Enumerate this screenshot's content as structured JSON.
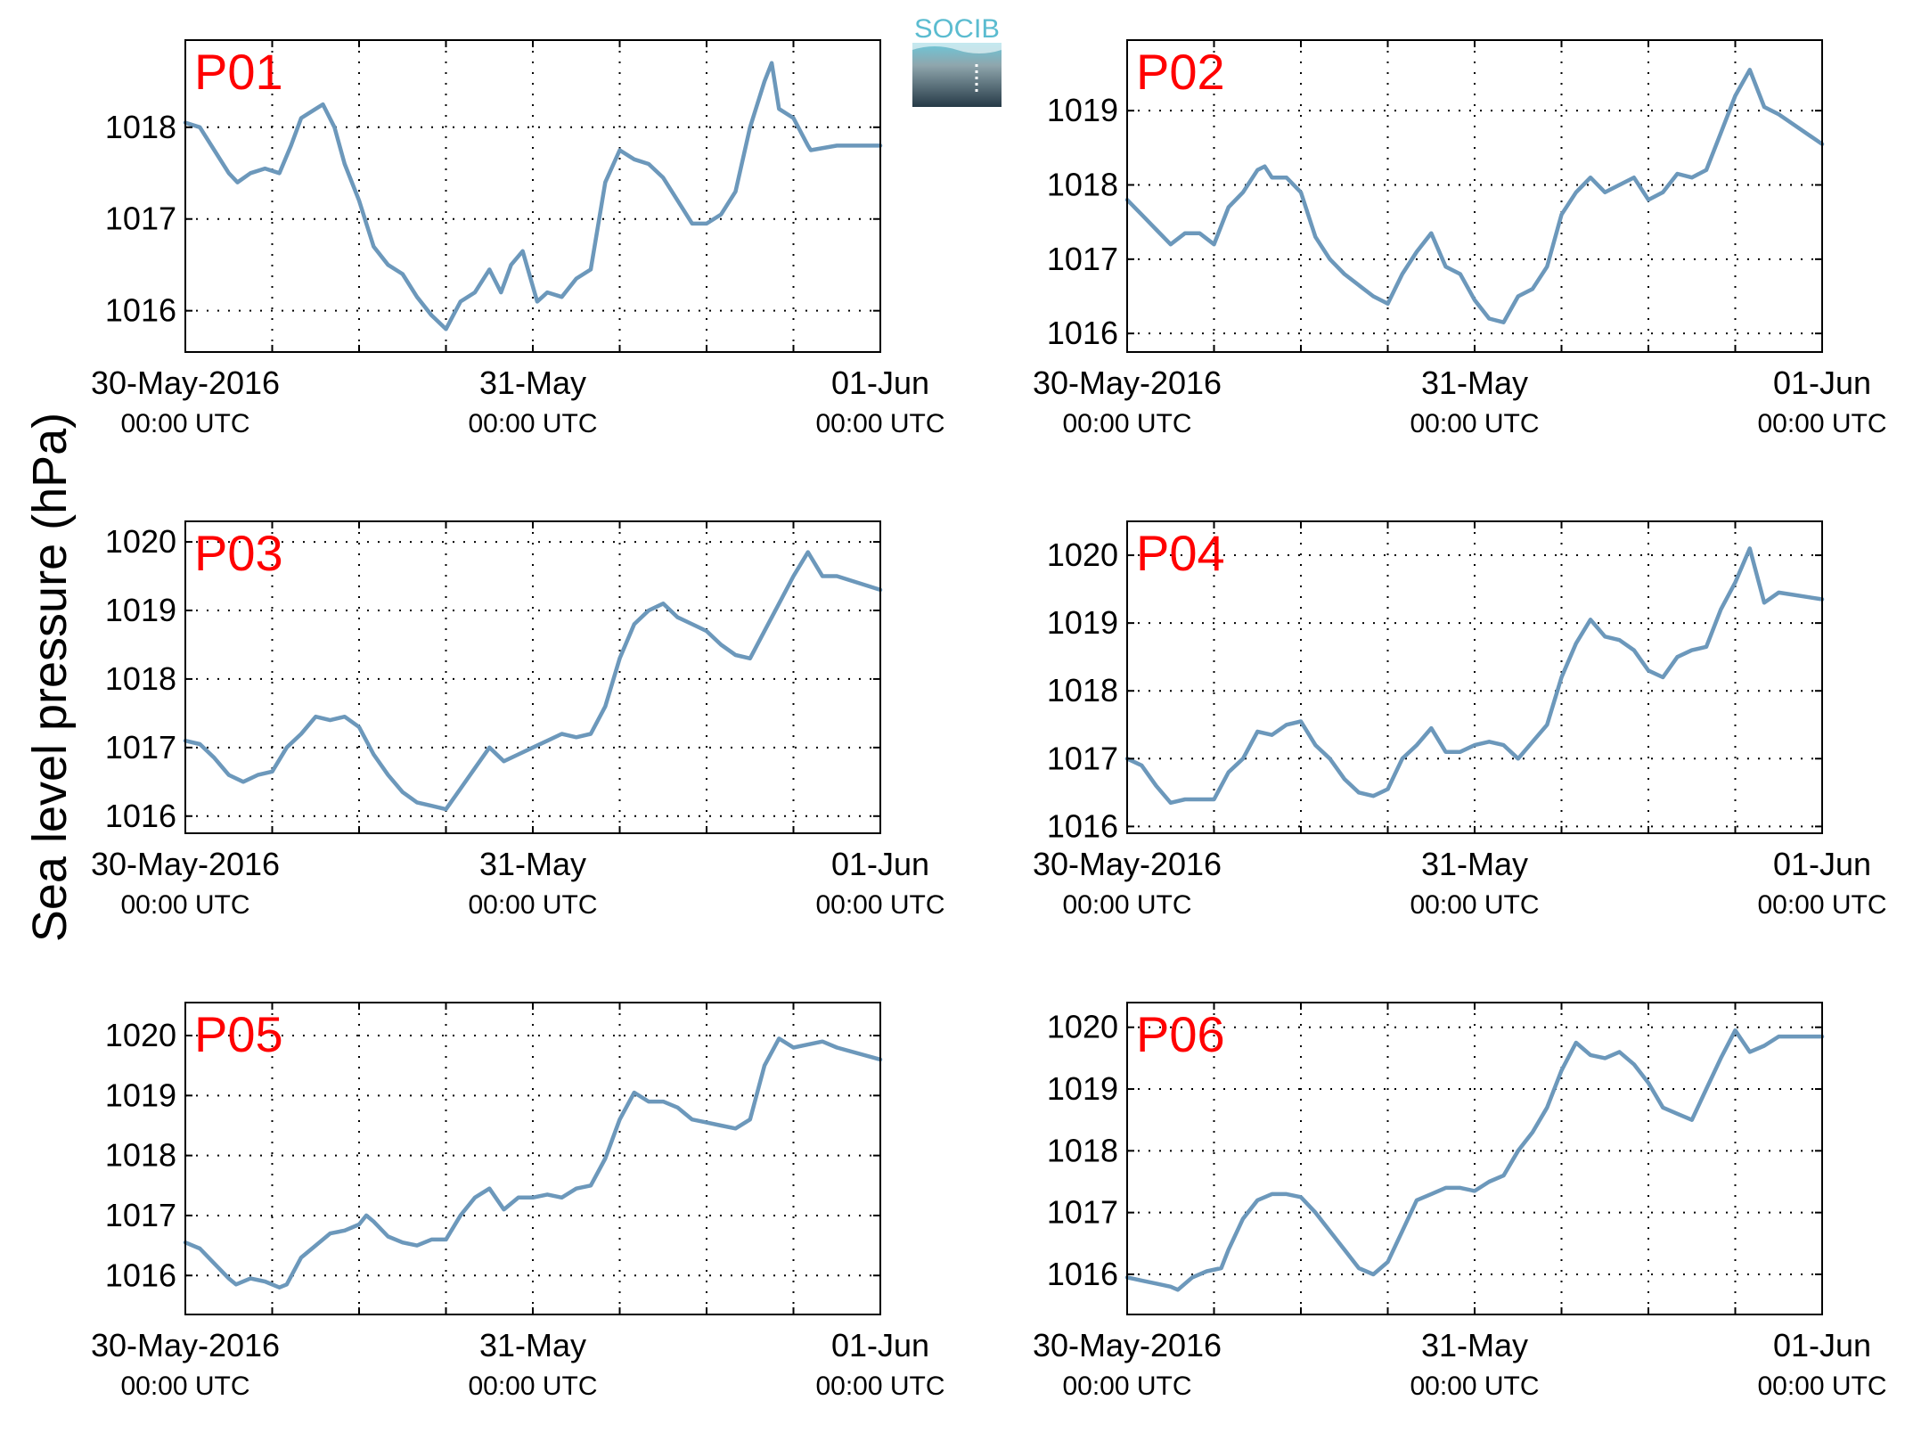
{
  "figure": {
    "ylabel": "Sea level pressure (hPa)",
    "logo_text": "SOCIB"
  },
  "colors": {
    "line": "#6c98bb",
    "panel_label": "#ff0000"
  },
  "chart_data": [
    {
      "type": "line",
      "name": "P01",
      "x_ticks": [
        {
          "main": "30-May-2016",
          "sub": "00:00 UTC"
        },
        {
          "main": "31-May",
          "sub": "00:00 UTC"
        },
        {
          "main": "01-Jun",
          "sub": "00:00 UTC"
        }
      ],
      "x_range_hours": [
        0,
        48
      ],
      "ylim": [
        1015.55,
        1018.95
      ],
      "yticks": [
        1016,
        1017,
        1018
      ],
      "grid": true,
      "points": [
        [
          0,
          1018.05
        ],
        [
          1,
          1018.0
        ],
        [
          2,
          1017.75
        ],
        [
          3,
          1017.5
        ],
        [
          3.6,
          1017.4
        ],
        [
          4.5,
          1017.5
        ],
        [
          5.5,
          1017.55
        ],
        [
          6.5,
          1017.5
        ],
        [
          7.3,
          1017.8
        ],
        [
          8,
          1018.1
        ],
        [
          9,
          1018.2
        ],
        [
          9.5,
          1018.25
        ],
        [
          10.3,
          1018.0
        ],
        [
          11,
          1017.6
        ],
        [
          12,
          1017.2
        ],
        [
          13,
          1016.7
        ],
        [
          14,
          1016.5
        ],
        [
          15,
          1016.4
        ],
        [
          16,
          1016.15
        ],
        [
          17,
          1015.95
        ],
        [
          18,
          1015.8
        ],
        [
          19,
          1016.1
        ],
        [
          20,
          1016.2
        ],
        [
          21,
          1016.45
        ],
        [
          21.8,
          1016.2
        ],
        [
          22.5,
          1016.5
        ],
        [
          23.3,
          1016.65
        ],
        [
          24.3,
          1016.1
        ],
        [
          25,
          1016.2
        ],
        [
          26,
          1016.15
        ],
        [
          27,
          1016.35
        ],
        [
          28,
          1016.45
        ],
        [
          29,
          1017.4
        ],
        [
          30,
          1017.75
        ],
        [
          31,
          1017.65
        ],
        [
          32,
          1017.6
        ],
        [
          33,
          1017.45
        ],
        [
          34,
          1017.2
        ],
        [
          35,
          1016.95
        ],
        [
          36,
          1016.95
        ],
        [
          37,
          1017.05
        ],
        [
          38,
          1017.3
        ],
        [
          39,
          1018.0
        ],
        [
          40,
          1018.5
        ],
        [
          40.5,
          1018.7
        ],
        [
          41,
          1018.2
        ],
        [
          42,
          1018.1
        ],
        [
          43,
          1017.8
        ],
        [
          43.2,
          1017.75
        ],
        [
          45,
          1017.8
        ],
        [
          48,
          1017.8
        ]
      ]
    },
    {
      "type": "line",
      "name": "P02",
      "x_ticks": [
        {
          "main": "30-May-2016",
          "sub": "00:00 UTC"
        },
        {
          "main": "31-May",
          "sub": "00:00 UTC"
        },
        {
          "main": "01-Jun",
          "sub": "00:00 UTC"
        }
      ],
      "x_range_hours": [
        0,
        48
      ],
      "ylim": [
        1015.75,
        1019.95
      ],
      "yticks": [
        1016,
        1017,
        1018,
        1019
      ],
      "grid": true,
      "points": [
        [
          0,
          1017.8
        ],
        [
          1,
          1017.6
        ],
        [
          2,
          1017.4
        ],
        [
          3,
          1017.2
        ],
        [
          4,
          1017.35
        ],
        [
          5,
          1017.35
        ],
        [
          6,
          1017.2
        ],
        [
          7,
          1017.7
        ],
        [
          8,
          1017.9
        ],
        [
          9,
          1018.2
        ],
        [
          9.5,
          1018.25
        ],
        [
          10,
          1018.1
        ],
        [
          11,
          1018.1
        ],
        [
          12,
          1017.9
        ],
        [
          13,
          1017.3
        ],
        [
          14,
          1017.0
        ],
        [
          15,
          1016.8
        ],
        [
          16,
          1016.65
        ],
        [
          17,
          1016.5
        ],
        [
          18,
          1016.4
        ],
        [
          19,
          1016.8
        ],
        [
          20,
          1017.1
        ],
        [
          21,
          1017.35
        ],
        [
          22,
          1016.9
        ],
        [
          23,
          1016.8
        ],
        [
          24,
          1016.45
        ],
        [
          25,
          1016.2
        ],
        [
          26,
          1016.15
        ],
        [
          27,
          1016.5
        ],
        [
          28,
          1016.6
        ],
        [
          29,
          1016.9
        ],
        [
          30,
          1017.6
        ],
        [
          31,
          1017.9
        ],
        [
          32,
          1018.1
        ],
        [
          33,
          1017.9
        ],
        [
          34,
          1018.0
        ],
        [
          35,
          1018.1
        ],
        [
          36,
          1017.8
        ],
        [
          37,
          1017.9
        ],
        [
          38,
          1018.15
        ],
        [
          39,
          1018.1
        ],
        [
          40,
          1018.2
        ],
        [
          41,
          1018.7
        ],
        [
          42,
          1019.2
        ],
        [
          43,
          1019.55
        ],
        [
          44,
          1019.05
        ],
        [
          45,
          1018.95
        ],
        [
          48,
          1018.55
        ]
      ]
    },
    {
      "type": "line",
      "name": "P03",
      "x_ticks": [
        {
          "main": "30-May-2016",
          "sub": "00:00 UTC"
        },
        {
          "main": "31-May",
          "sub": "00:00 UTC"
        },
        {
          "main": "01-Jun",
          "sub": "00:00 UTC"
        }
      ],
      "x_range_hours": [
        0,
        48
      ],
      "ylim": [
        1015.75,
        1020.3
      ],
      "yticks": [
        1016,
        1017,
        1018,
        1019,
        1020
      ],
      "grid": true,
      "points": [
        [
          0,
          1017.1
        ],
        [
          1,
          1017.05
        ],
        [
          2,
          1016.85
        ],
        [
          3,
          1016.6
        ],
        [
          4,
          1016.5
        ],
        [
          5,
          1016.6
        ],
        [
          6,
          1016.65
        ],
        [
          7,
          1017.0
        ],
        [
          8,
          1017.2
        ],
        [
          9,
          1017.45
        ],
        [
          10,
          1017.4
        ],
        [
          11,
          1017.45
        ],
        [
          12,
          1017.3
        ],
        [
          13,
          1016.9
        ],
        [
          14,
          1016.6
        ],
        [
          15,
          1016.35
        ],
        [
          16,
          1016.2
        ],
        [
          17,
          1016.15
        ],
        [
          18,
          1016.1
        ],
        [
          19,
          1016.4
        ],
        [
          20,
          1016.7
        ],
        [
          21,
          1017.0
        ],
        [
          22,
          1016.8
        ],
        [
          23,
          1016.9
        ],
        [
          24,
          1017.0
        ],
        [
          25,
          1017.1
        ],
        [
          26,
          1017.2
        ],
        [
          27,
          1017.15
        ],
        [
          28,
          1017.2
        ],
        [
          29,
          1017.6
        ],
        [
          30,
          1018.3
        ],
        [
          31,
          1018.8
        ],
        [
          32,
          1019.0
        ],
        [
          33,
          1019.1
        ],
        [
          34,
          1018.9
        ],
        [
          35,
          1018.8
        ],
        [
          36,
          1018.7
        ],
        [
          37,
          1018.5
        ],
        [
          38,
          1018.35
        ],
        [
          39,
          1018.3
        ],
        [
          40,
          1018.7
        ],
        [
          41,
          1019.1
        ],
        [
          42,
          1019.5
        ],
        [
          43,
          1019.85
        ],
        [
          44,
          1019.5
        ],
        [
          45,
          1019.5
        ],
        [
          48,
          1019.3
        ]
      ]
    },
    {
      "type": "line",
      "name": "P04",
      "x_ticks": [
        {
          "main": "30-May-2016",
          "sub": "00:00 UTC"
        },
        {
          "main": "31-May",
          "sub": "00:00 UTC"
        },
        {
          "main": "01-Jun",
          "sub": "00:00 UTC"
        }
      ],
      "x_range_hours": [
        0,
        48
      ],
      "ylim": [
        1015.9,
        1020.5
      ],
      "yticks": [
        1016,
        1017,
        1018,
        1019,
        1020
      ],
      "grid": true,
      "points": [
        [
          0,
          1017.0
        ],
        [
          1,
          1016.9
        ],
        [
          2,
          1016.6
        ],
        [
          3,
          1016.35
        ],
        [
          4,
          1016.4
        ],
        [
          5,
          1016.4
        ],
        [
          6,
          1016.4
        ],
        [
          7,
          1016.8
        ],
        [
          8,
          1017.0
        ],
        [
          9,
          1017.4
        ],
        [
          10,
          1017.35
        ],
        [
          11,
          1017.5
        ],
        [
          12,
          1017.55
        ],
        [
          13,
          1017.2
        ],
        [
          14,
          1017.0
        ],
        [
          15,
          1016.7
        ],
        [
          16,
          1016.5
        ],
        [
          17,
          1016.45
        ],
        [
          18,
          1016.55
        ],
        [
          19,
          1017.0
        ],
        [
          20,
          1017.2
        ],
        [
          21,
          1017.45
        ],
        [
          22,
          1017.1
        ],
        [
          23,
          1017.1
        ],
        [
          24,
          1017.2
        ],
        [
          25,
          1017.25
        ],
        [
          26,
          1017.2
        ],
        [
          27,
          1017.0
        ],
        [
          28,
          1017.25
        ],
        [
          29,
          1017.5
        ],
        [
          30,
          1018.2
        ],
        [
          31,
          1018.7
        ],
        [
          32,
          1019.05
        ],
        [
          33,
          1018.8
        ],
        [
          34,
          1018.75
        ],
        [
          35,
          1018.6
        ],
        [
          36,
          1018.3
        ],
        [
          37,
          1018.2
        ],
        [
          38,
          1018.5
        ],
        [
          39,
          1018.6
        ],
        [
          40,
          1018.65
        ],
        [
          41,
          1019.2
        ],
        [
          42,
          1019.6
        ],
        [
          43,
          1020.1
        ],
        [
          44,
          1019.3
        ],
        [
          45,
          1019.45
        ],
        [
          48,
          1019.35
        ]
      ]
    },
    {
      "type": "line",
      "name": "P05",
      "x_ticks": [
        {
          "main": "30-May-2016",
          "sub": "00:00 UTC"
        },
        {
          "main": "31-May",
          "sub": "00:00 UTC"
        },
        {
          "main": "01-Jun",
          "sub": "00:00 UTC"
        }
      ],
      "x_range_hours": [
        0,
        48
      ],
      "ylim": [
        1015.35,
        1020.55
      ],
      "yticks": [
        1016,
        1017,
        1018,
        1019,
        1020
      ],
      "grid": true,
      "points": [
        [
          0,
          1016.55
        ],
        [
          1,
          1016.45
        ],
        [
          2,
          1016.2
        ],
        [
          3,
          1015.95
        ],
        [
          3.5,
          1015.85
        ],
        [
          4.5,
          1015.95
        ],
        [
          5.5,
          1015.9
        ],
        [
          6.5,
          1015.8
        ],
        [
          7,
          1015.85
        ],
        [
          8,
          1016.3
        ],
        [
          9,
          1016.5
        ],
        [
          10,
          1016.7
        ],
        [
          11,
          1016.75
        ],
        [
          12,
          1016.85
        ],
        [
          12.5,
          1017.0
        ],
        [
          13,
          1016.9
        ],
        [
          14,
          1016.65
        ],
        [
          15,
          1016.55
        ],
        [
          16,
          1016.5
        ],
        [
          17,
          1016.6
        ],
        [
          18,
          1016.6
        ],
        [
          19,
          1017.0
        ],
        [
          20,
          1017.3
        ],
        [
          21,
          1017.45
        ],
        [
          22,
          1017.1
        ],
        [
          23,
          1017.3
        ],
        [
          24,
          1017.3
        ],
        [
          25,
          1017.35
        ],
        [
          26,
          1017.3
        ],
        [
          27,
          1017.45
        ],
        [
          28,
          1017.5
        ],
        [
          29,
          1017.95
        ],
        [
          30,
          1018.6
        ],
        [
          31,
          1019.05
        ],
        [
          32,
          1018.9
        ],
        [
          33,
          1018.9
        ],
        [
          34,
          1018.8
        ],
        [
          35,
          1018.6
        ],
        [
          36,
          1018.55
        ],
        [
          37,
          1018.5
        ],
        [
          38,
          1018.45
        ],
        [
          39,
          1018.6
        ],
        [
          40,
          1019.5
        ],
        [
          41,
          1019.95
        ],
        [
          42,
          1019.8
        ],
        [
          43,
          1019.85
        ],
        [
          44,
          1019.9
        ],
        [
          45,
          1019.8
        ],
        [
          48,
          1019.6
        ]
      ]
    },
    {
      "type": "line",
      "name": "P06",
      "x_ticks": [
        {
          "main": "30-May-2016",
          "sub": "00:00 UTC"
        },
        {
          "main": "31-May",
          "sub": "00:00 UTC"
        },
        {
          "main": "01-Jun",
          "sub": "00:00 UTC"
        }
      ],
      "x_range_hours": [
        0,
        48
      ],
      "ylim": [
        1015.35,
        1020.4
      ],
      "yticks": [
        1016,
        1017,
        1018,
        1019,
        1020
      ],
      "grid": true,
      "points": [
        [
          0,
          1015.95
        ],
        [
          1,
          1015.9
        ],
        [
          2,
          1015.85
        ],
        [
          3,
          1015.8
        ],
        [
          3.5,
          1015.75
        ],
        [
          4.5,
          1015.95
        ],
        [
          5.5,
          1016.05
        ],
        [
          6.5,
          1016.1
        ],
        [
          7,
          1016.4
        ],
        [
          8,
          1016.9
        ],
        [
          9,
          1017.2
        ],
        [
          10,
          1017.3
        ],
        [
          11,
          1017.3
        ],
        [
          12,
          1017.25
        ],
        [
          13,
          1017.0
        ],
        [
          14,
          1016.7
        ],
        [
          15,
          1016.4
        ],
        [
          16,
          1016.1
        ],
        [
          17,
          1016.0
        ],
        [
          18,
          1016.2
        ],
        [
          19,
          1016.7
        ],
        [
          20,
          1017.2
        ],
        [
          21,
          1017.3
        ],
        [
          22,
          1017.4
        ],
        [
          23,
          1017.4
        ],
        [
          24,
          1017.35
        ],
        [
          25,
          1017.5
        ],
        [
          26,
          1017.6
        ],
        [
          27,
          1018.0
        ],
        [
          28,
          1018.3
        ],
        [
          29,
          1018.7
        ],
        [
          30,
          1019.3
        ],
        [
          31,
          1019.75
        ],
        [
          32,
          1019.55
        ],
        [
          33,
          1019.5
        ],
        [
          34,
          1019.6
        ],
        [
          35,
          1019.4
        ],
        [
          36,
          1019.1
        ],
        [
          37,
          1018.7
        ],
        [
          38,
          1018.6
        ],
        [
          39,
          1018.5
        ],
        [
          40,
          1019.0
        ],
        [
          41,
          1019.5
        ],
        [
          42,
          1019.95
        ],
        [
          43,
          1019.6
        ],
        [
          44,
          1019.7
        ],
        [
          45,
          1019.85
        ],
        [
          48,
          1019.85
        ]
      ]
    }
  ]
}
